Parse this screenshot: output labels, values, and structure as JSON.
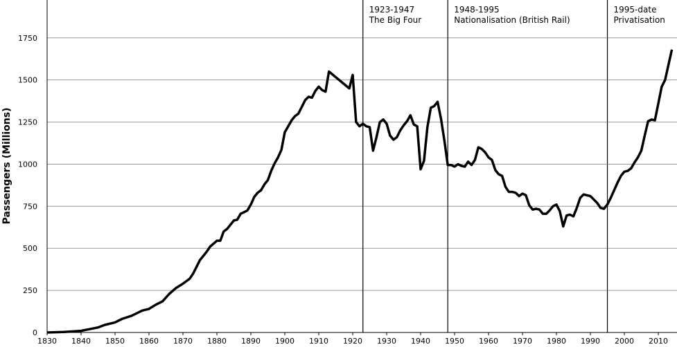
{
  "chart_data": {
    "type": "line",
    "y_label": "Passengers (Millions)",
    "color": "#000000",
    "grid": true,
    "xlim": [
      1830,
      2015.5
    ],
    "ylim": [
      0,
      1975
    ],
    "xticks": [
      1830,
      1840,
      1850,
      1860,
      1870,
      1880,
      1890,
      1900,
      1910,
      1920,
      1930,
      1940,
      1950,
      1960,
      1970,
      1980,
      1990,
      2000,
      2010
    ],
    "yticks": [
      0,
      250,
      500,
      750,
      1000,
      1250,
      1500,
      1750
    ],
    "annotations": [
      {
        "x": 1923,
        "lines": [
          "1923-1947",
          "The Big Four"
        ]
      },
      {
        "x": 1948,
        "lines": [
          "1948-1995",
          "Nationalisation (British Rail)"
        ]
      },
      {
        "x": 1995,
        "lines": [
          "1995-date",
          "Privatisation"
        ]
      }
    ],
    "x": [
      1830,
      1835,
      1840,
      1845,
      1847,
      1850,
      1852,
      1855,
      1858,
      1860,
      1862,
      1864,
      1866,
      1868,
      1870,
      1872,
      1873,
      1875,
      1877,
      1878,
      1880,
      1881,
      1882,
      1883,
      1885,
      1886,
      1887,
      1888,
      1889,
      1890,
      1891,
      1892,
      1893,
      1894,
      1895,
      1896,
      1897,
      1898,
      1899,
      1900,
      1901,
      1902,
      1903,
      1904,
      1905,
      1906,
      1907,
      1908,
      1909,
      1910,
      1911,
      1912,
      1913,
      1919,
      1920,
      1921,
      1922,
      1923,
      1924,
      1925,
      1926,
      1927,
      1928,
      1929,
      1930,
      1931,
      1932,
      1933,
      1934,
      1935,
      1936,
      1937,
      1938,
      1939,
      1940,
      1941,
      1942,
      1943,
      1944,
      1945,
      1946,
      1947,
      1948,
      1949,
      1950,
      1951,
      1952,
      1953,
      1954,
      1955,
      1956,
      1957,
      1958,
      1959,
      1960,
      1961,
      1962,
      1963,
      1964,
      1965,
      1966,
      1967,
      1968,
      1969,
      1970,
      1971,
      1972,
      1973,
      1974,
      1975,
      1976,
      1977,
      1978,
      1979,
      1980,
      1981,
      1982,
      1983,
      1984,
      1985,
      1986,
      1987,
      1988,
      1989,
      1990,
      1991,
      1992,
      1993,
      1994,
      1995,
      1996,
      1997,
      1998,
      1999,
      2000,
      2001,
      2002,
      2003,
      2004,
      2005,
      2006,
      2007,
      2008,
      2009,
      2010,
      2011,
      2012,
      2013,
      2014
    ],
    "values": [
      0,
      3,
      10,
      30,
      45,
      60,
      80,
      100,
      130,
      140,
      165,
      185,
      230,
      265,
      290,
      320,
      350,
      430,
      480,
      510,
      545,
      545,
      600,
      615,
      665,
      670,
      705,
      715,
      725,
      760,
      805,
      830,
      845,
      880,
      905,
      960,
      1005,
      1040,
      1085,
      1190,
      1225,
      1260,
      1285,
      1300,
      1340,
      1380,
      1400,
      1395,
      1435,
      1460,
      1440,
      1430,
      1550,
      1450,
      1530,
      1250,
      1225,
      1240,
      1225,
      1220,
      1080,
      1160,
      1250,
      1265,
      1240,
      1170,
      1145,
      1160,
      1200,
      1230,
      1255,
      1290,
      1235,
      1225,
      970,
      1020,
      1220,
      1335,
      1345,
      1370,
      1270,
      1140,
      995,
      995,
      985,
      1000,
      990,
      985,
      1015,
      995,
      1025,
      1100,
      1090,
      1070,
      1040,
      1025,
      965,
      940,
      930,
      865,
      835,
      835,
      830,
      810,
      825,
      815,
      755,
      730,
      735,
      730,
      705,
      705,
      725,
      750,
      760,
      720,
      630,
      695,
      700,
      690,
      740,
      800,
      820,
      815,
      810,
      790,
      770,
      740,
      735,
      760,
      800,
      845,
      890,
      930,
      955,
      960,
      975,
      1010,
      1040,
      1080,
      1170,
      1255,
      1265,
      1260,
      1360,
      1460,
      1500,
      1590,
      1680
    ]
  }
}
